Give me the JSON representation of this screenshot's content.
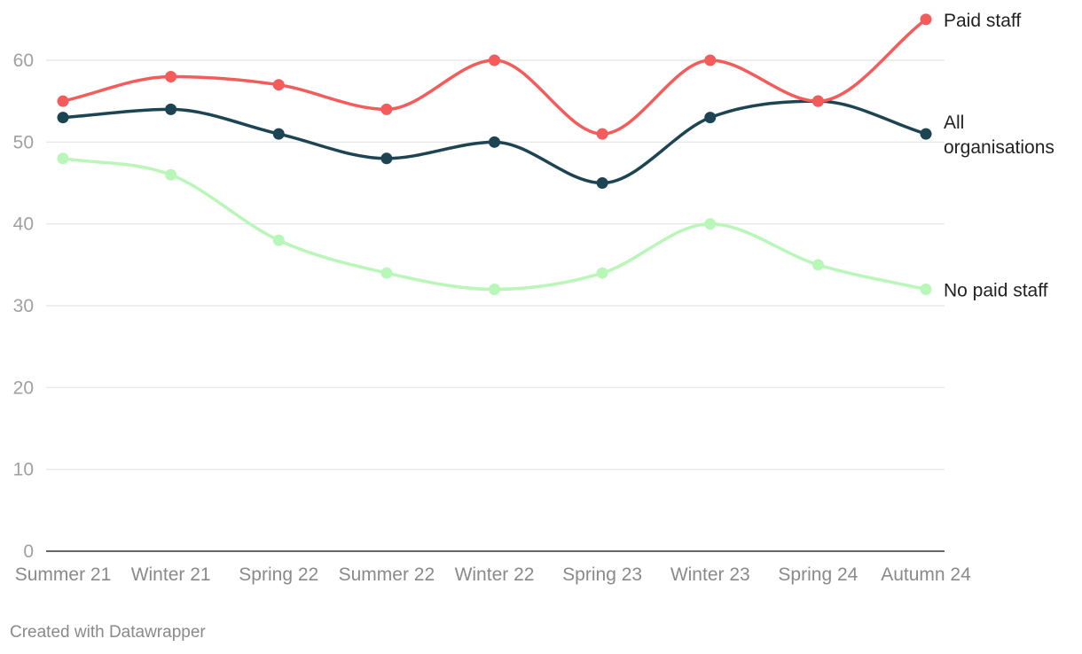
{
  "chart_data": {
    "type": "line",
    "categories": [
      "Summer 21",
      "Winter 21",
      "Spring 22",
      "Summer 22",
      "Winter 22",
      "Spring 23",
      "Winter 23",
      "Spring 24",
      "Autumn 24"
    ],
    "yticks": [
      0,
      10,
      20,
      30,
      40,
      50,
      60
    ],
    "ylim": [
      0,
      65
    ],
    "grid": true,
    "series": [
      {
        "name": "Paid staff",
        "color": "#f45b5b",
        "values": [
          55,
          58,
          57,
          54,
          60,
          51,
          60,
          55,
          65
        ]
      },
      {
        "name": "All organisations",
        "label_lines": [
          "All",
          "organisations"
        ],
        "color": "#1d4452",
        "values": [
          53,
          54,
          51,
          48,
          50,
          45,
          53,
          55,
          51
        ]
      },
      {
        "name": "No paid staff",
        "color": "#b9f7b9",
        "values": [
          48,
          46,
          38,
          34,
          32,
          34,
          40,
          35,
          32
        ]
      }
    ]
  },
  "footer": {
    "credit": "Created with Datawrapper"
  }
}
